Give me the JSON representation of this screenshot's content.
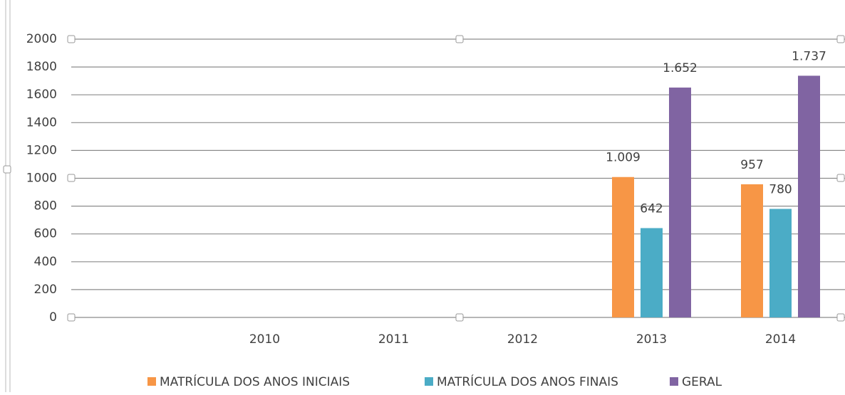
{
  "chart_data": {
    "type": "bar",
    "categories": [
      null,
      "2010",
      "2011",
      "2012",
      "2013",
      "2014"
    ],
    "series": [
      {
        "name": "MATRÍCULA DOS ANOS INICIAIS",
        "color": "#f79646",
        "values": [
          null,
          null,
          null,
          null,
          1009,
          957
        ],
        "value_labels": [
          null,
          null,
          null,
          null,
          "1.009",
          "957"
        ]
      },
      {
        "name": "MATRÍCULA DOS ANOS FINAIS",
        "color": "#4bacc6",
        "values": [
          null,
          null,
          null,
          null,
          642,
          780
        ],
        "value_labels": [
          null,
          null,
          null,
          null,
          "642",
          "780"
        ]
      },
      {
        "name": "GERAL",
        "color": "#8064a2",
        "values": [
          null,
          null,
          null,
          null,
          1652,
          1737
        ],
        "value_labels": [
          null,
          null,
          null,
          null,
          "1.652",
          "1.737"
        ]
      }
    ],
    "ylim": [
      0,
      2000
    ],
    "yticks": [
      0,
      200,
      400,
      600,
      800,
      1000,
      1200,
      1400,
      1600,
      1800,
      2000
    ],
    "grid": true,
    "legend": "bottom"
  }
}
